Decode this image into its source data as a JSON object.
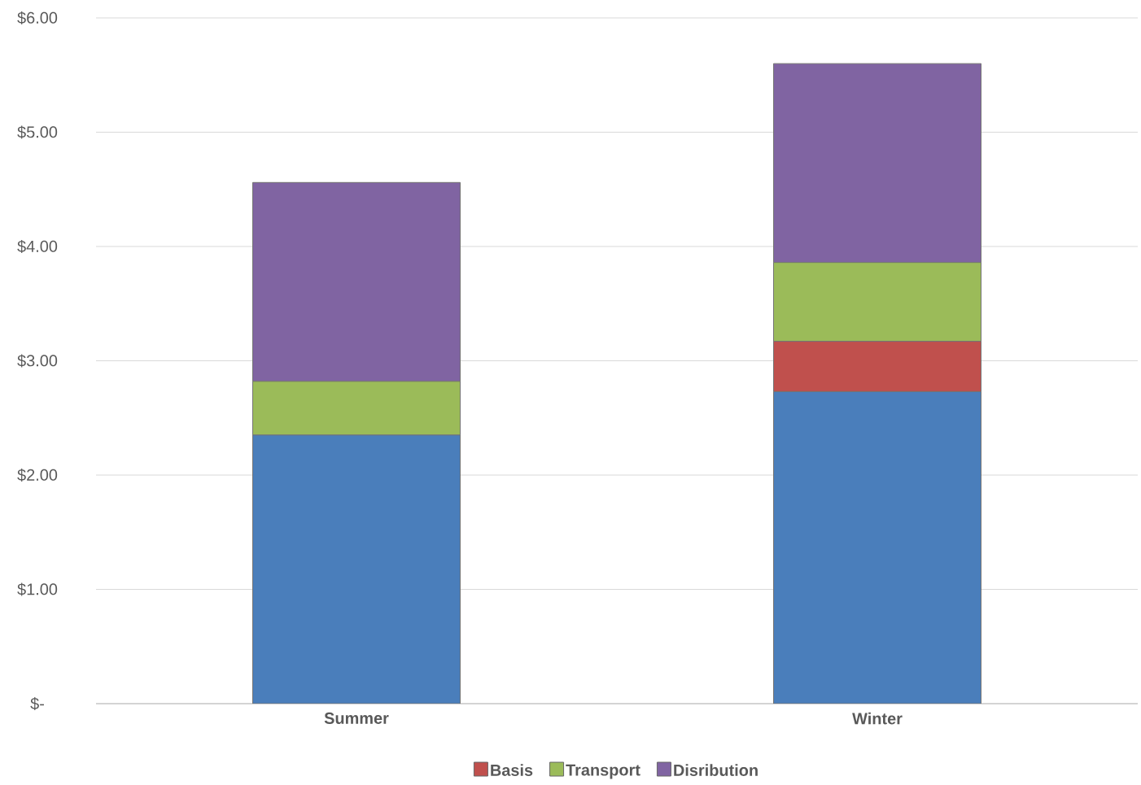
{
  "chart_data": {
    "type": "bar",
    "stacked": true,
    "categories": [
      "Summer",
      "Winter"
    ],
    "series": [
      {
        "color": "#4a7ebb",
        "values": [
          2.35,
          2.73
        ]
      },
      {
        "name": "Basis",
        "color": "#c0504d",
        "values": [
          0,
          0.44
        ]
      },
      {
        "name": "Transport",
        "color": "#9bbb59",
        "values": [
          0.47,
          0.69
        ]
      },
      {
        "name": "Disribution",
        "color": "#8064a2",
        "values": [
          1.74,
          1.74
        ]
      }
    ],
    "ylim": [
      0,
      6
    ],
    "yticks": [
      {
        "value": 0,
        "label": "$-"
      },
      {
        "value": 1,
        "label": "$1.00"
      },
      {
        "value": 2,
        "label": "$2.00"
      },
      {
        "value": 3,
        "label": "$3.00"
      },
      {
        "value": 4,
        "label": "$4.00"
      },
      {
        "value": 5,
        "label": "$5.00"
      },
      {
        "value": 6,
        "label": "$6.00"
      }
    ],
    "grid": "y",
    "legend": "bottom"
  }
}
